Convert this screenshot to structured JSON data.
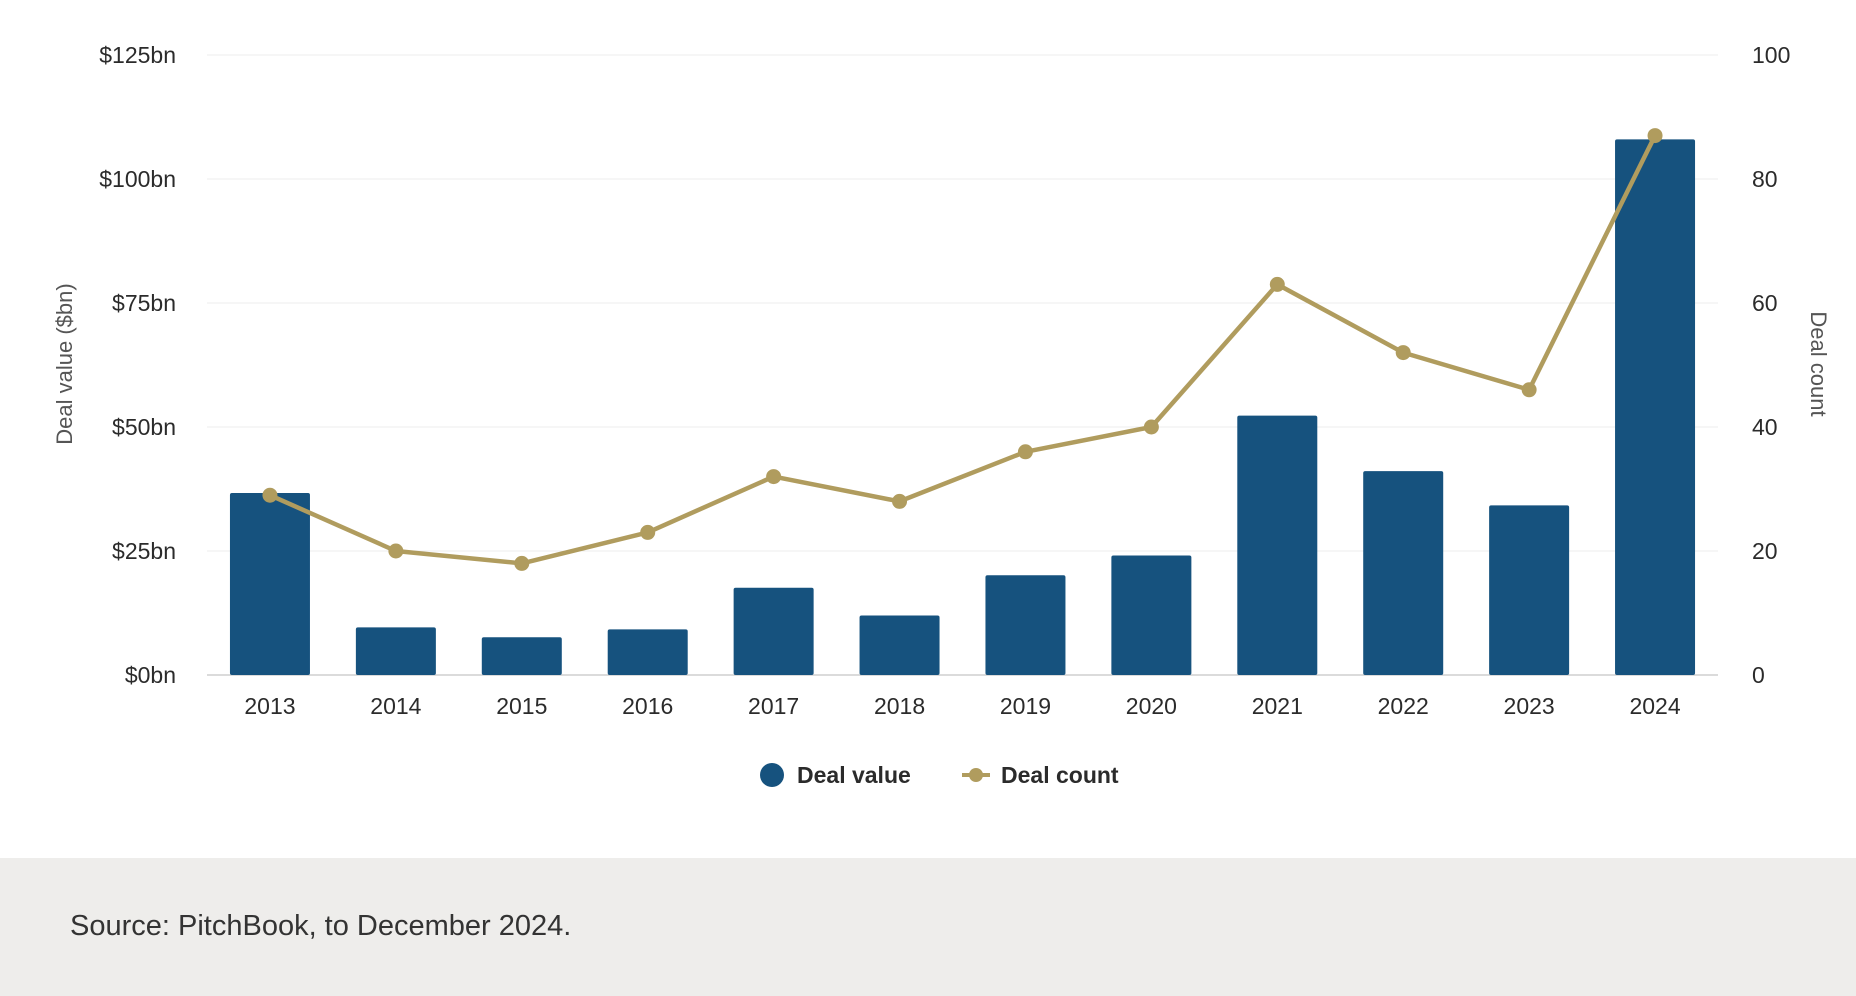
{
  "chart_data": {
    "type": "bar",
    "categories": [
      "2013",
      "2014",
      "2015",
      "2016",
      "2017",
      "2018",
      "2019",
      "2020",
      "2021",
      "2022",
      "2023",
      "2024"
    ],
    "series": [
      {
        "name": "Deal value",
        "type": "bar",
        "axis": "left",
        "color": "#16527e",
        "values": [
          36.7,
          9.6,
          7.6,
          9.2,
          17.6,
          12.0,
          20.1,
          24.1,
          52.3,
          41.1,
          34.2,
          108.0
        ]
      },
      {
        "name": "Deal count",
        "type": "line",
        "axis": "right",
        "color": "#b09c5e",
        "values": [
          29,
          20,
          18,
          23,
          32,
          28,
          36,
          40,
          63,
          52,
          46,
          87
        ]
      }
    ],
    "left_axis": {
      "label": "Deal value ($bn)",
      "ticks": [
        "$0bn",
        "$25bn",
        "$50bn",
        "$75bn",
        "$100bn",
        "$125bn"
      ],
      "ylim": [
        0,
        125
      ]
    },
    "right_axis": {
      "label": "Deal count",
      "ticks": [
        "0",
        "20",
        "40",
        "60",
        "80",
        "100"
      ],
      "ylim": [
        0,
        100
      ]
    },
    "grid": true,
    "legend_position": "bottom-center"
  },
  "footer": {
    "source": "Source: PitchBook, to December 2024."
  }
}
